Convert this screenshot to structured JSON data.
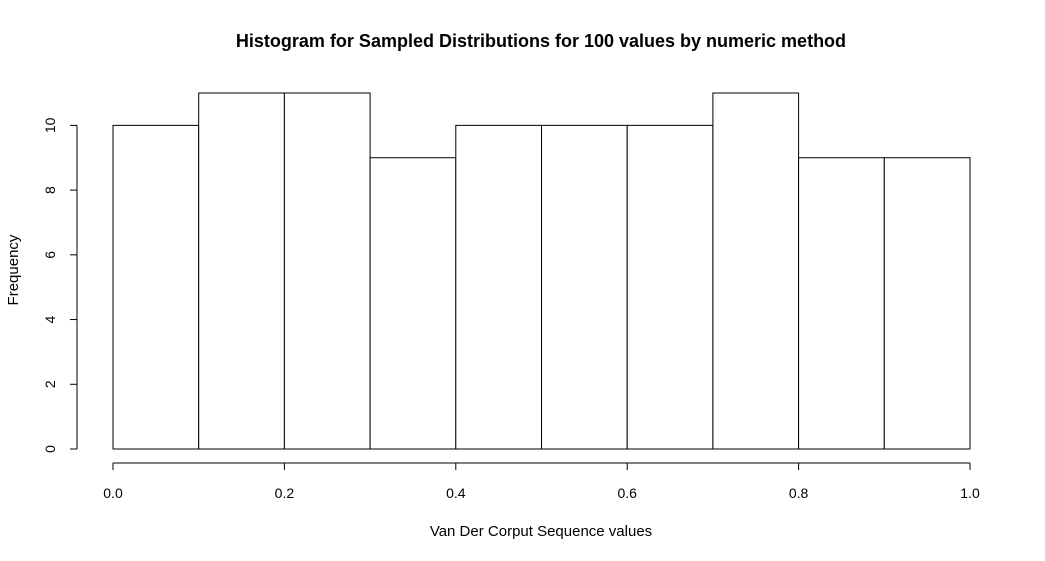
{
  "chart_data": {
    "type": "bar",
    "title": "Histogram for Sampled Distributions for 100 values by numeric method",
    "xlabel": "Van Der Corput Sequence values",
    "ylabel": "Frequency",
    "bins": [
      {
        "start": 0.0,
        "end": 0.1,
        "value": 10
      },
      {
        "start": 0.1,
        "end": 0.2,
        "value": 11
      },
      {
        "start": 0.2,
        "end": 0.3,
        "value": 11
      },
      {
        "start": 0.3,
        "end": 0.4,
        "value": 9
      },
      {
        "start": 0.4,
        "end": 0.5,
        "value": 10
      },
      {
        "start": 0.5,
        "end": 0.6,
        "value": 10
      },
      {
        "start": 0.6,
        "end": 0.7,
        "value": 10
      },
      {
        "start": 0.7,
        "end": 0.8,
        "value": 11
      },
      {
        "start": 0.8,
        "end": 0.9,
        "value": 9
      },
      {
        "start": 0.9,
        "end": 1.0,
        "value": 9
      }
    ],
    "xlim": [
      0,
      1
    ],
    "ylim": [
      0,
      11
    ],
    "x_ticks": [
      0.0,
      0.2,
      0.4,
      0.6,
      0.8,
      1.0
    ],
    "x_tick_labels": [
      "0.0",
      "0.2",
      "0.4",
      "0.6",
      "0.8",
      "1.0"
    ],
    "y_ticks": [
      0,
      2,
      4,
      6,
      8,
      10
    ],
    "y_tick_labels": [
      "0",
      "2",
      "4",
      "6",
      "8",
      "10"
    ],
    "grid": false,
    "colors": {
      "bar_fill": "#ffffff",
      "bar_stroke": "#000000"
    }
  }
}
